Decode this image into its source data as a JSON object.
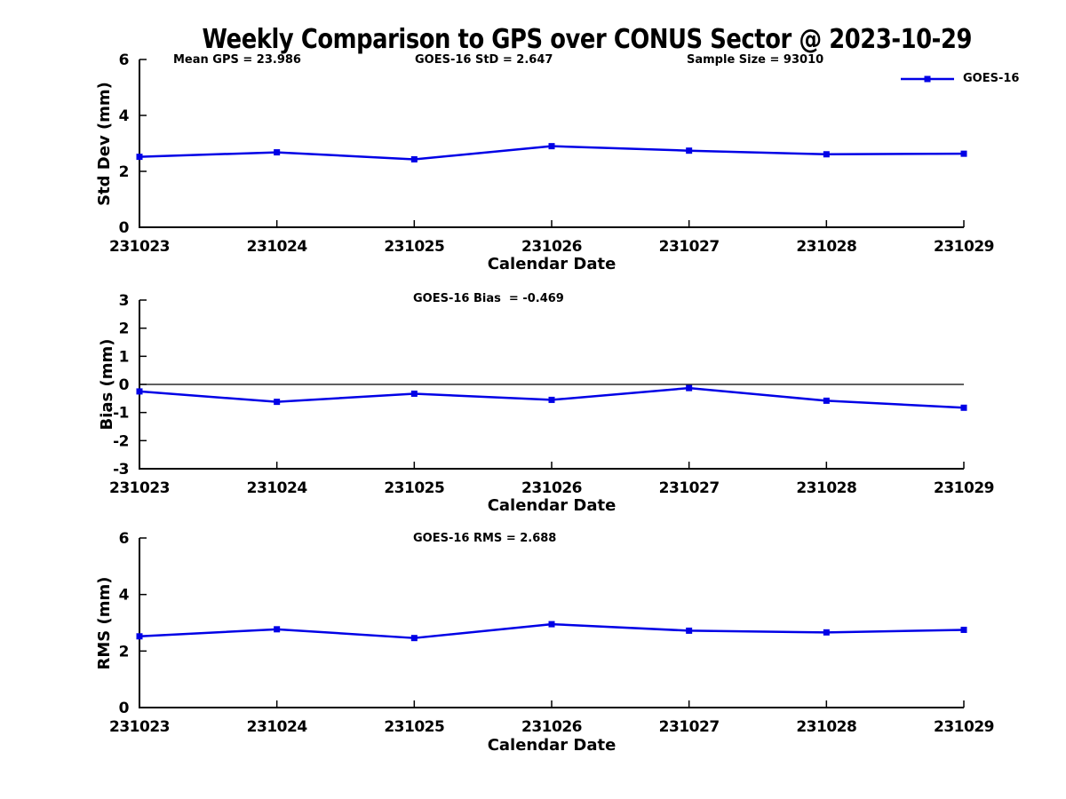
{
  "figure": {
    "title": "Weekly Comparison to GPS over CONUS Sector @ 2023-10-29",
    "background_color": "#ffffff",
    "line_color": "#0000e6",
    "axis_color": "#000000"
  },
  "legend": {
    "label": "GOES-16",
    "marker": "filled-square-on-line",
    "color": "#0000e6",
    "position": "top-right"
  },
  "chart_data": [
    {
      "type": "line",
      "panel": "std-dev",
      "annotations": [
        "Mean GPS = 23.986",
        "GOES-16 StD = 2.647",
        "Sample Size = 93010"
      ],
      "categories": [
        "231023",
        "231024",
        "231025",
        "231026",
        "231027",
        "231028",
        "231029"
      ],
      "series": [
        {
          "name": "GOES-16",
          "values": [
            2.52,
            2.68,
            2.43,
            2.9,
            2.74,
            2.61,
            2.63
          ]
        }
      ],
      "xlabel": "Calendar Date",
      "ylabel": "Std Dev (mm)",
      "ylim": [
        0,
        6
      ],
      "yticks": [
        0,
        2,
        4,
        6
      ],
      "grid": false,
      "zero_line": false,
      "legend_position": "top-right"
    },
    {
      "type": "line",
      "panel": "bias",
      "annotations": [
        "GOES-16 Bias  = -0.469"
      ],
      "categories": [
        "231023",
        "231024",
        "231025",
        "231026",
        "231027",
        "231028",
        "231029"
      ],
      "series": [
        {
          "name": "GOES-16",
          "values": [
            -0.25,
            -0.62,
            -0.33,
            -0.55,
            -0.13,
            -0.58,
            -0.83
          ]
        }
      ],
      "xlabel": "Calendar Date",
      "ylabel": "Bias (mm)",
      "ylim": [
        -3,
        3
      ],
      "yticks": [
        -3,
        -2,
        -1,
        0,
        1,
        2,
        3
      ],
      "grid": false,
      "zero_line": true,
      "legend_position": "none"
    },
    {
      "type": "line",
      "panel": "rms",
      "annotations": [
        "GOES-16 RMS = 2.688"
      ],
      "categories": [
        "231023",
        "231024",
        "231025",
        "231026",
        "231027",
        "231028",
        "231029"
      ],
      "series": [
        {
          "name": "GOES-16",
          "values": [
            2.52,
            2.77,
            2.46,
            2.95,
            2.72,
            2.66,
            2.75
          ]
        }
      ],
      "xlabel": "Calendar Date",
      "ylabel": "RMS (mm)",
      "ylim": [
        0,
        6
      ],
      "yticks": [
        0,
        2,
        4,
        6
      ],
      "grid": false,
      "zero_line": false,
      "legend_position": "none"
    }
  ]
}
